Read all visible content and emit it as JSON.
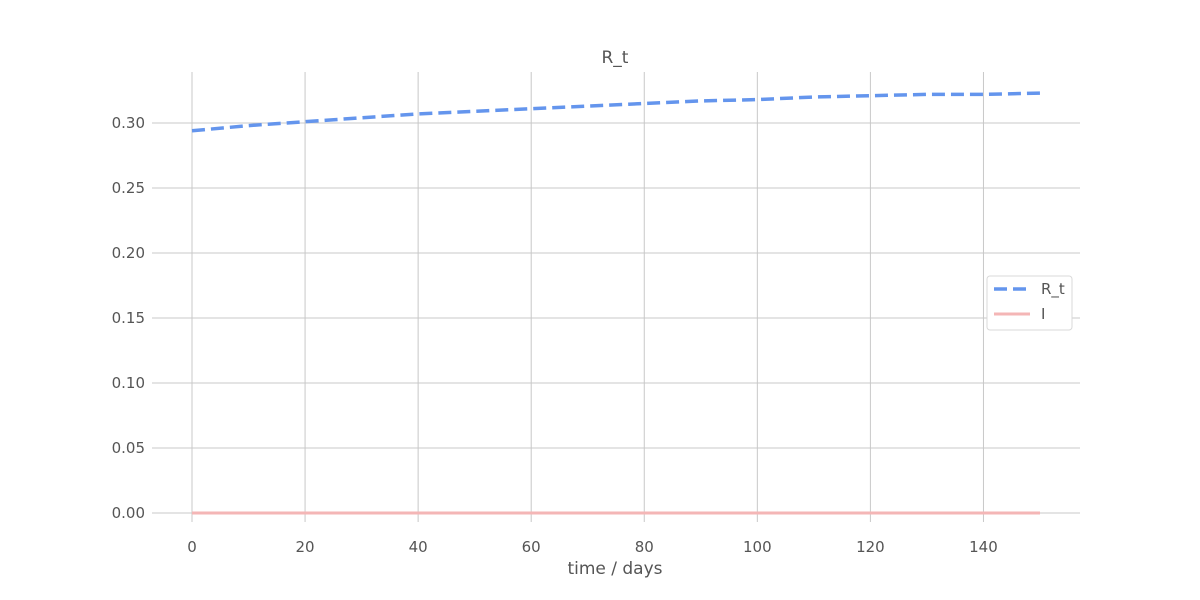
{
  "chart_data": {
    "type": "line",
    "title": "R_t",
    "xlabel": "time / days",
    "ylabel": "",
    "xlim": [
      0,
      150
    ],
    "ylim": [
      0.0,
      0.33
    ],
    "x_ticks": [
      "0",
      "20",
      "40",
      "60",
      "80",
      "100",
      "120",
      "140"
    ],
    "y_ticks": [
      "0.00",
      "0.05",
      "0.10",
      "0.15",
      "0.20",
      "0.25",
      "0.30"
    ],
    "grid": true,
    "legend_position": "right",
    "series": [
      {
        "name": "R_t",
        "color": "#6495ed",
        "style": "dashed",
        "x": [
          0,
          10,
          20,
          30,
          40,
          50,
          60,
          70,
          80,
          90,
          100,
          110,
          120,
          130,
          140,
          150
        ],
        "y": [
          0.294,
          0.298,
          0.301,
          0.304,
          0.307,
          0.309,
          0.311,
          0.313,
          0.315,
          0.317,
          0.318,
          0.32,
          0.321,
          0.322,
          0.322,
          0.323
        ]
      },
      {
        "name": "I",
        "color": "#f4b6b6",
        "style": "solid",
        "x": [
          0,
          150
        ],
        "y": [
          0.0,
          0.0
        ]
      }
    ]
  }
}
